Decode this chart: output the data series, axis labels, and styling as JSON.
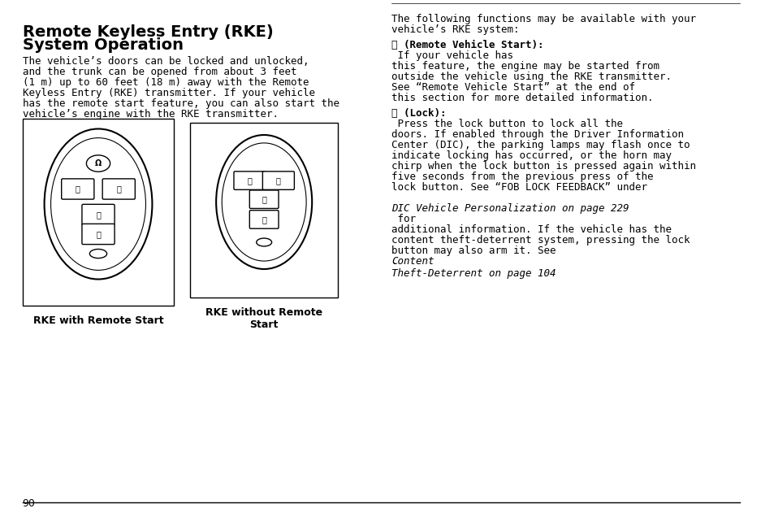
{
  "bg_color": "#ffffff",
  "title_line1": "Remote Keyless Entry (RKE)",
  "title_line2": "System Operation",
  "left_para": "The vehicle’s doors can be locked and unlocked,\nand the trunk can be opened from about 3 feet\n(1 m) up to 60 feet (18 m) away with the Remote\nKeyless Entry (RKE) transmitter. If your vehicle\nhas the remote start feature, you can also start the\nvehicle’s engine with the RKE transmitter.",
  "caption_left": "RKE with Remote Start",
  "caption_right": "RKE without Remote\nStart",
  "right_intro": "The following functions may be available with your\nvehicle’s RKE system:",
  "right_section1_bold": "⎇ (Remote Vehicle Start): ",
  "right_section1_normal": " If your vehicle has\nthis feature, the engine may be started from\noutside the vehicle using the RKE transmitter.\nSee “Remote Vehicle Start” at the end of\nthis section for more detailed information.",
  "right_section2_bold": "🔒 (Lock): ",
  "right_section2_normal": " Press the lock button to lock all the\ndoors. If enabled through the Driver Information\nCenter (DIC), the parking lamps may flash once to\nindicate locking has occurred, or the horn may\nchirp when the lock button is pressed again within\nfive seconds from the previous press of the\nlock button. See “FOB LOCK FEEDBACK” under\n",
  "right_section2_italic": "DIC Vehicle Personalization on page 229",
  "right_section2_end": " for\nadditional information. If the vehicle has the\ncontent theft-deterrent system, pressing the lock\nbutton may also arm it. See ",
  "right_section2_italic2": "Content\nTheft-Deterrent on page 104",
  "right_section2_final": ".",
  "page_number": "90",
  "font_size_title": 14,
  "font_size_body": 9,
  "font_size_caption": 9
}
